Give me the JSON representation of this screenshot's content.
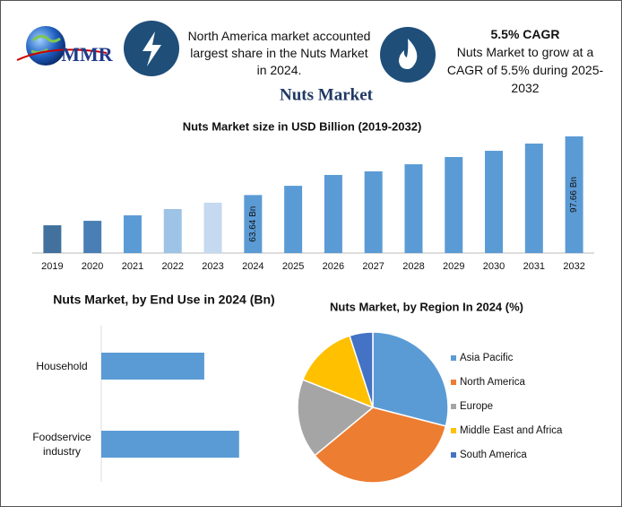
{
  "header": {
    "logo_text": "MMR",
    "info_text": "North America market accounted largest share in the Nuts Market in 2024.",
    "cagr_title": "5.5% CAGR",
    "cagr_text": "Nuts Market to grow at a CAGR of 5.5% during 2025-2032"
  },
  "title": "Nuts Market",
  "chart_data": [
    {
      "type": "bar",
      "title": "Nuts Market size in USD Billion (2019-2032)",
      "categories": [
        "2019",
        "2020",
        "2021",
        "2022",
        "2023",
        "2024",
        "2025",
        "2026",
        "2027",
        "2028",
        "2029",
        "2030",
        "2031",
        "2032"
      ],
      "values": [
        46.1,
        48.7,
        51.9,
        55.5,
        59.2,
        63.64,
        69.0,
        75.3,
        77.4,
        81.5,
        85.7,
        89.3,
        93.5,
        97.66
      ],
      "value_labels": [
        null,
        null,
        null,
        null,
        null,
        "63.64 Bn",
        null,
        null,
        null,
        null,
        null,
        null,
        null,
        "97.66 Bn"
      ],
      "colors": [
        "#41719c",
        "#4a7fb5",
        "#5b9bd5",
        "#9dc3e6",
        "#c5d9f0",
        "#5b9bd5",
        "#5b9bd5",
        "#5b9bd5",
        "#5b9bd5",
        "#5b9bd5",
        "#5b9bd5",
        "#5b9bd5",
        "#5b9bd5",
        "#5b9bd5"
      ],
      "ylim": [
        30,
        100
      ]
    },
    {
      "type": "hbar",
      "title": "Nuts Market, by End Use in 2024 (Bn)",
      "categories": [
        "Household",
        "Foodservice industry"
      ],
      "values": [
        27.2,
        36.4
      ],
      "color": "#5b9bd5",
      "xlim": [
        0,
        40
      ]
    },
    {
      "type": "pie",
      "title": "Nuts Market, by Region In 2024 (%)",
      "categories": [
        "Asia Pacific",
        "North America",
        "Europe",
        "Middle East and Africa",
        "South America"
      ],
      "values": [
        29,
        35,
        17,
        14,
        5
      ],
      "colors": [
        "#5b9bd5",
        "#ed7d31",
        "#a5a5a5",
        "#ffc000",
        "#4472c4"
      ],
      "legend": "right"
    }
  ]
}
